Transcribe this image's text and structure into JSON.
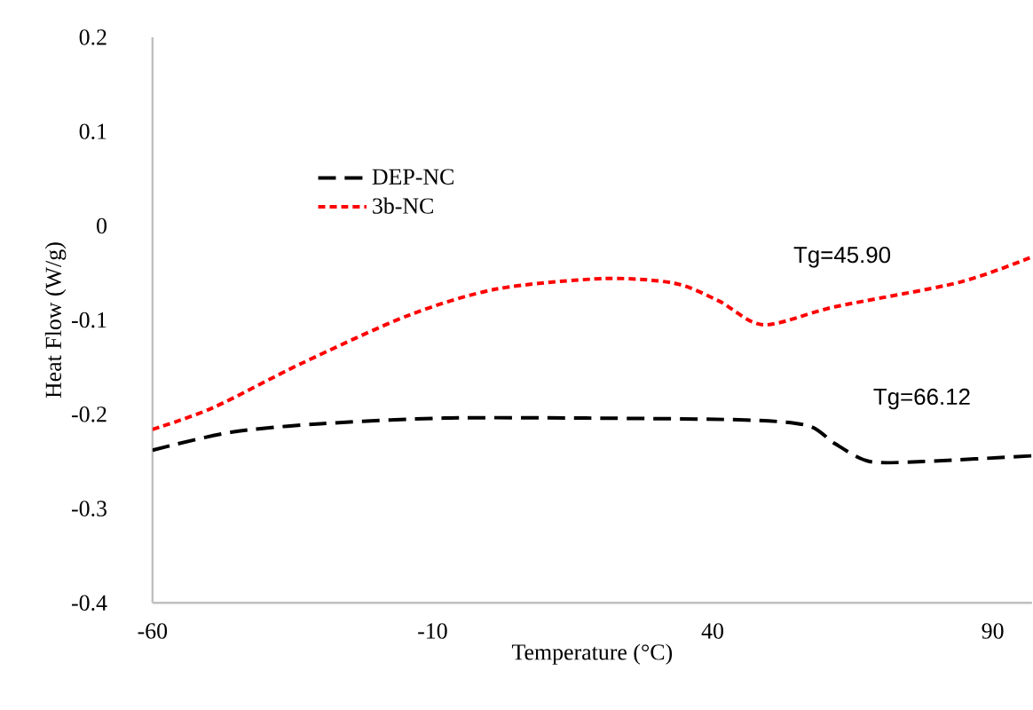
{
  "chart_data": {
    "type": "line",
    "xlabel": "Temperature (°C)",
    "ylabel": "Heat Flow (W/g)",
    "xlim": [
      -60,
      97
    ],
    "xticks": [
      -60,
      -10,
      40,
      90
    ],
    "ylim": [
      -0.4,
      0.2
    ],
    "yticks": [
      -0.4,
      -0.3,
      -0.2,
      -0.1,
      0,
      0.1,
      0.2
    ],
    "grid": false,
    "legend": "top left",
    "marker": "none",
    "annotations": [
      "Tg=45.90",
      "Tg=66.12"
    ],
    "series": [
      {
        "name": "DEP-NC",
        "color": "#000000",
        "line_style": "dashed",
        "x": [
          -60,
          -46,
          -30,
          -8,
          17.4,
          45.9,
          57,
          61.8,
          68,
          77.6,
          97
        ],
        "values": [
          -0.238,
          -0.219,
          -0.21,
          -0.204,
          -0.204,
          -0.206,
          -0.212,
          -0.231,
          -0.25,
          -0.25,
          -0.244
        ]
      },
      {
        "name": "3b-NC",
        "color": "#ff0000",
        "line_style": "dotted",
        "x": [
          -60,
          -49.2,
          -33.4,
          -14.3,
          1.5,
          20.6,
          33.2,
          41.2,
          49.1,
          61.8,
          84,
          97
        ],
        "values": [
          -0.216,
          -0.193,
          -0.146,
          -0.095,
          -0.067,
          -0.056,
          -0.061,
          -0.08,
          -0.105,
          -0.086,
          -0.06,
          -0.033
        ]
      }
    ]
  }
}
